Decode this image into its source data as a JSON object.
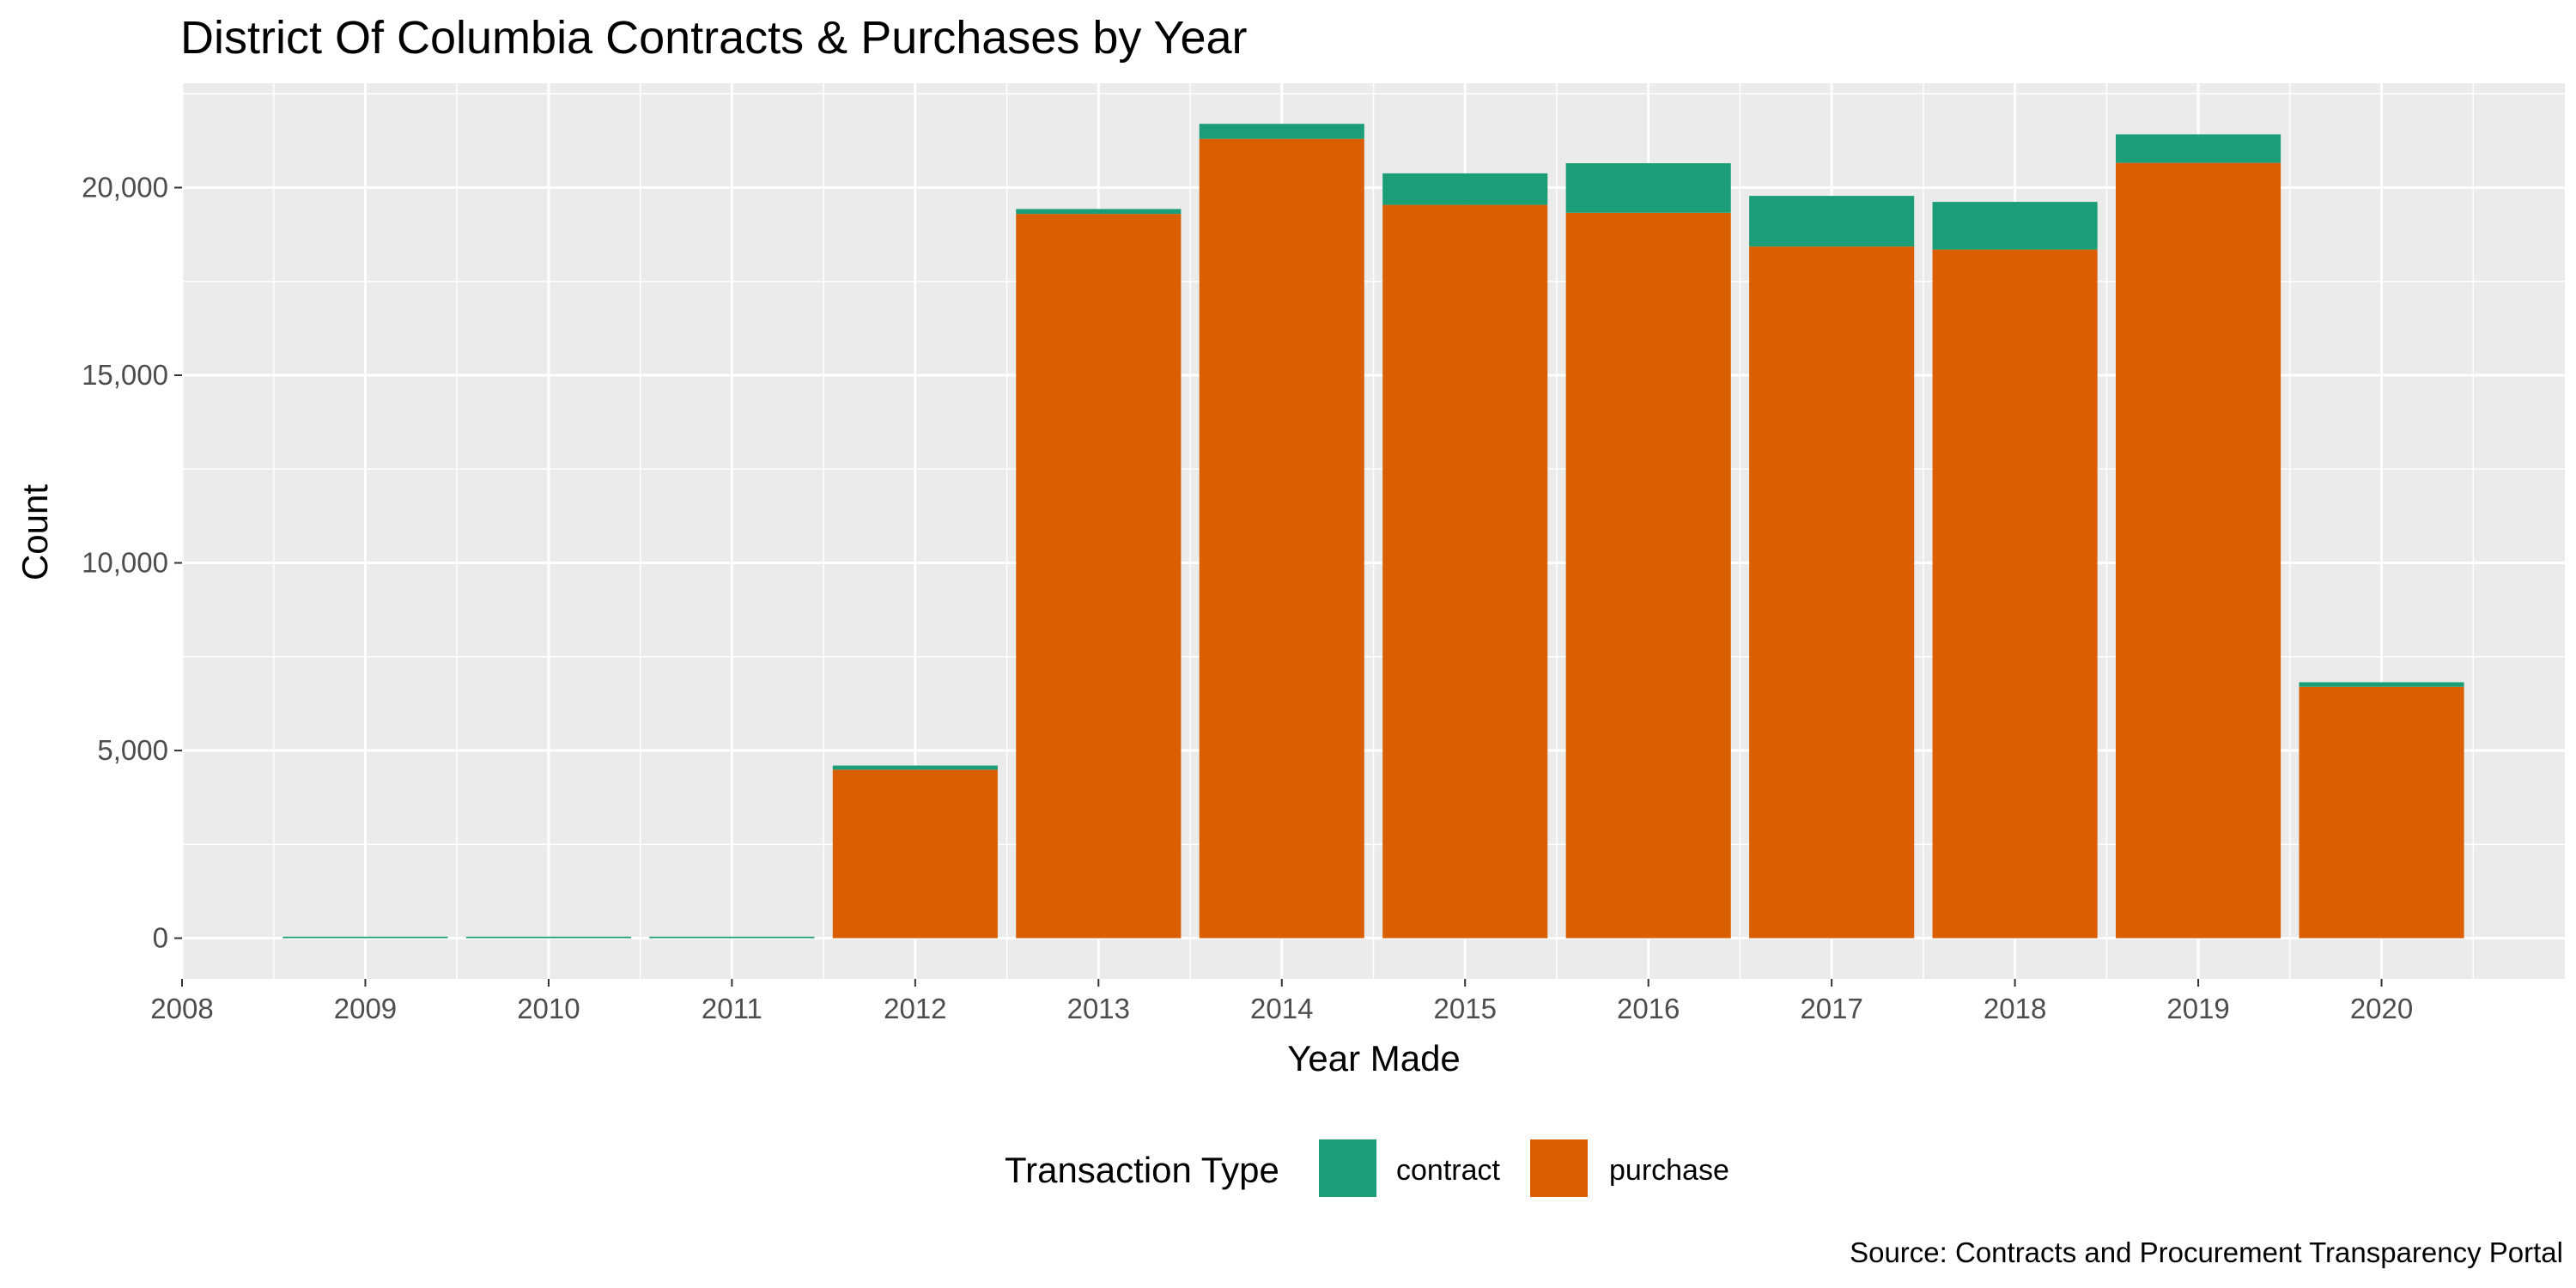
{
  "chart_data": {
    "type": "bar",
    "stacked": true,
    "title": "District Of Columbia Contracts & Purchases by Year",
    "xlabel": "Year Made",
    "ylabel": "Count",
    "caption": "Source: Contracts and Procurement Transparency Portal",
    "x_ticks": [
      "2008",
      "2009",
      "2010",
      "2011",
      "2012",
      "2013",
      "2014",
      "2015",
      "2016",
      "2017",
      "2018",
      "2019",
      "2020"
    ],
    "y_ticks": [
      "0",
      "5,000",
      "10,000",
      "15,000",
      "20,000"
    ],
    "y_tick_values": [
      0,
      5000,
      10000,
      15000,
      20000
    ],
    "xlim": [
      2008,
      2021
    ],
    "ylim": [
      -1085,
      22780
    ],
    "grid": true,
    "legend_position": "bottom",
    "legend_title": "Transaction Type",
    "categories": [
      2009,
      2010,
      2011,
      2012,
      2013,
      2014,
      2015,
      2016,
      2017,
      2018,
      2019,
      2020
    ],
    "series": [
      {
        "name": "purchase",
        "color": "#D95F02",
        "values": [
          0,
          0,
          0,
          4490,
          19300,
          21300,
          19540,
          19330,
          18430,
          18350,
          20660,
          6700
        ]
      },
      {
        "name": "contract",
        "color": "#1B9E77",
        "values": [
          40,
          40,
          40,
          110,
          130,
          400,
          840,
          1320,
          1350,
          1270,
          760,
          120
        ]
      }
    ]
  }
}
